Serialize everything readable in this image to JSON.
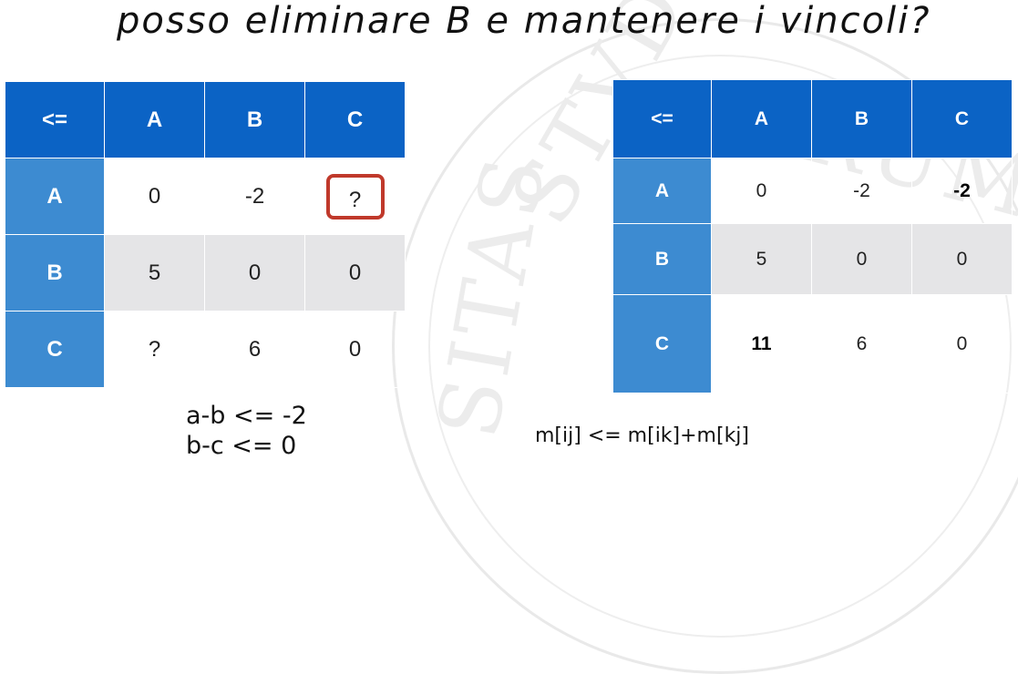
{
  "slide": {
    "title": "posso eliminare B e mantenere i vincoli?"
  },
  "table_left": {
    "header": [
      "<=",
      "A",
      "B",
      "C"
    ],
    "rows": [
      {
        "label": "A",
        "cells": [
          "0",
          "-2",
          "?"
        ]
      },
      {
        "label": "B",
        "cells": [
          "5",
          "0",
          "0"
        ]
      },
      {
        "label": "C",
        "cells": [
          "?",
          "6",
          "0"
        ]
      }
    ]
  },
  "table_right": {
    "header": [
      "<=",
      "A",
      "B",
      "C"
    ],
    "rows": [
      {
        "label": "A",
        "cells": [
          "0",
          "-2",
          "-2"
        ]
      },
      {
        "label": "B",
        "cells": [
          "5",
          "0",
          "0"
        ]
      },
      {
        "label": "C",
        "cells": [
          "11",
          "6",
          "0"
        ]
      }
    ]
  },
  "constraints": [
    "a-b <= -2",
    "b-c <= 0"
  ],
  "formula": "m[ij] <= m[ik]+m[kj]",
  "colors": {
    "header_blue": "#0b63c5",
    "row_header_blue": "#3d8bd1",
    "alt_row_grey": "#e5e5e7",
    "highlight_red": "#c0392b"
  }
}
